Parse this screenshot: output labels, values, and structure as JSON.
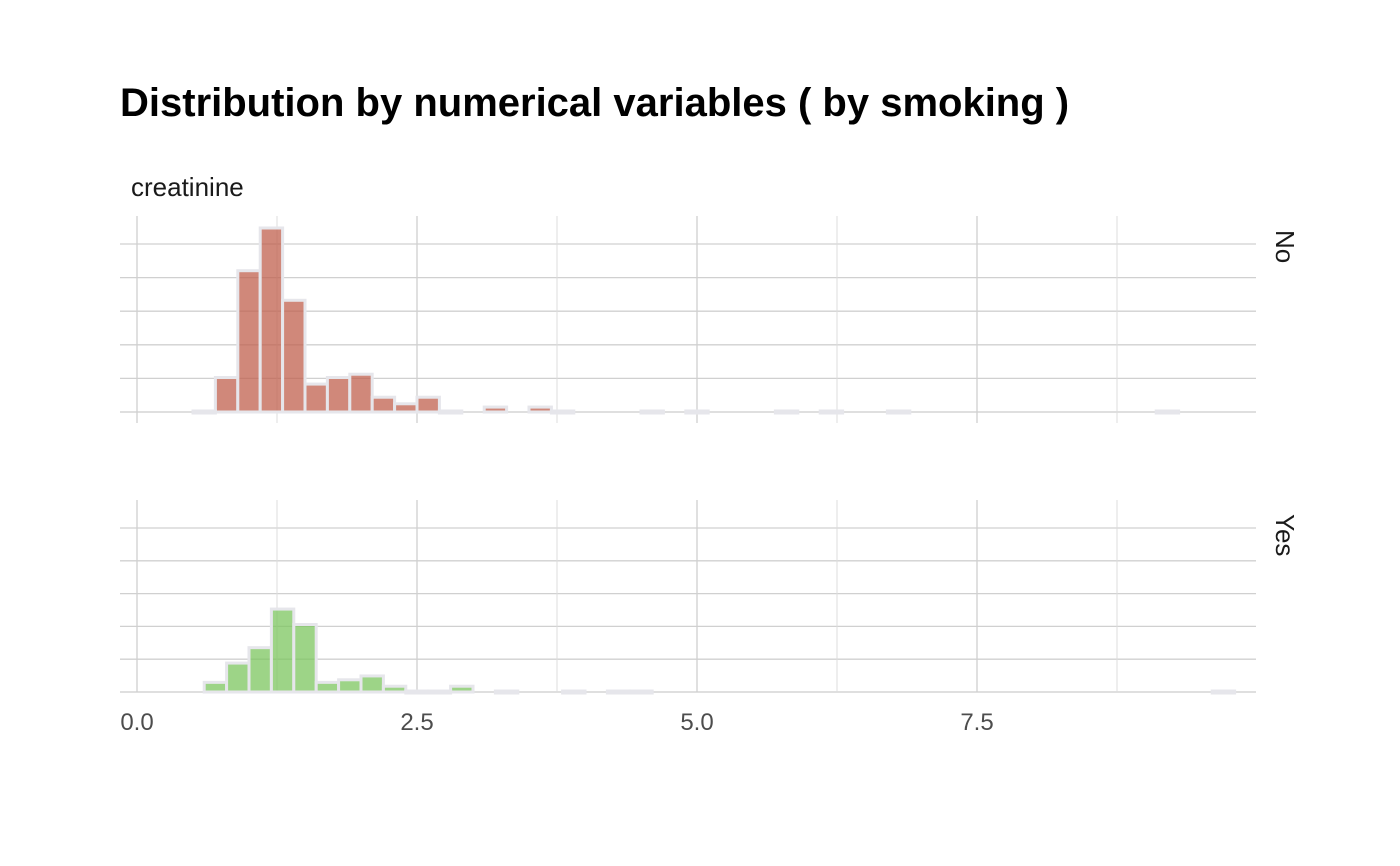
{
  "title": "Distribution by numerical variables ( by smoking )",
  "chart_data": {
    "type": "bar",
    "title": "Distribution by numerical variables ( by smoking )",
    "variable": "creatinine",
    "xlim": [
      -0.3,
      10.0
    ],
    "x_ticks": [
      0,
      2.5,
      5,
      7.5
    ],
    "x_tick_labels": [
      "0.0",
      "2.5",
      "5.0",
      "7.5"
    ],
    "bin_width": 0.2,
    "grid": true,
    "facets": [
      {
        "name": "No",
        "color": "#c0604e",
        "ylim": [
          0,
          56
        ],
        "bins": [
          {
            "x": 0.8,
            "count": 10.5
          },
          {
            "x": 1.0,
            "count": 43
          },
          {
            "x": 1.2,
            "count": 56
          },
          {
            "x": 1.4,
            "count": 34
          },
          {
            "x": 1.6,
            "count": 8.5
          },
          {
            "x": 1.8,
            "count": 10.5
          },
          {
            "x": 2.0,
            "count": 11.5
          },
          {
            "x": 2.2,
            "count": 4.5
          },
          {
            "x": 2.4,
            "count": 2.5
          },
          {
            "x": 2.6,
            "count": 4.5
          },
          {
            "x": 3.2,
            "count": 1.5
          },
          {
            "x": 3.6,
            "count": 1.5
          },
          {
            "x": 0.6,
            "count": 0.3
          },
          {
            "x": 2.8,
            "count": 0.3
          },
          {
            "x": 3.8,
            "count": 0.3
          },
          {
            "x": 4.6,
            "count": 0.3
          },
          {
            "x": 5.0,
            "count": 0.3
          },
          {
            "x": 5.8,
            "count": 0.3
          },
          {
            "x": 6.2,
            "count": 0.3
          },
          {
            "x": 6.8,
            "count": 0.3
          },
          {
            "x": 9.2,
            "count": 0.3
          }
        ]
      },
      {
        "name": "Yes",
        "color": "#7cc65f",
        "ylim": [
          0,
          56
        ],
        "bins": [
          {
            "x": 0.7,
            "count": 3
          },
          {
            "x": 0.9,
            "count": 9
          },
          {
            "x": 1.1,
            "count": 13.8
          },
          {
            "x": 1.3,
            "count": 25.8
          },
          {
            "x": 1.5,
            "count": 21
          },
          {
            "x": 1.7,
            "count": 3
          },
          {
            "x": 1.9,
            "count": 3.8
          },
          {
            "x": 2.1,
            "count": 5
          },
          {
            "x": 2.3,
            "count": 1.8
          },
          {
            "x": 2.9,
            "count": 1.8
          },
          {
            "x": 2.5,
            "count": 0.3
          },
          {
            "x": 2.7,
            "count": 0.3
          },
          {
            "x": 3.3,
            "count": 0.3
          },
          {
            "x": 3.9,
            "count": 0.3
          },
          {
            "x": 4.3,
            "count": 0.3
          },
          {
            "x": 4.5,
            "count": 0.3
          },
          {
            "x": 9.7,
            "count": 0.3
          }
        ]
      }
    ]
  }
}
